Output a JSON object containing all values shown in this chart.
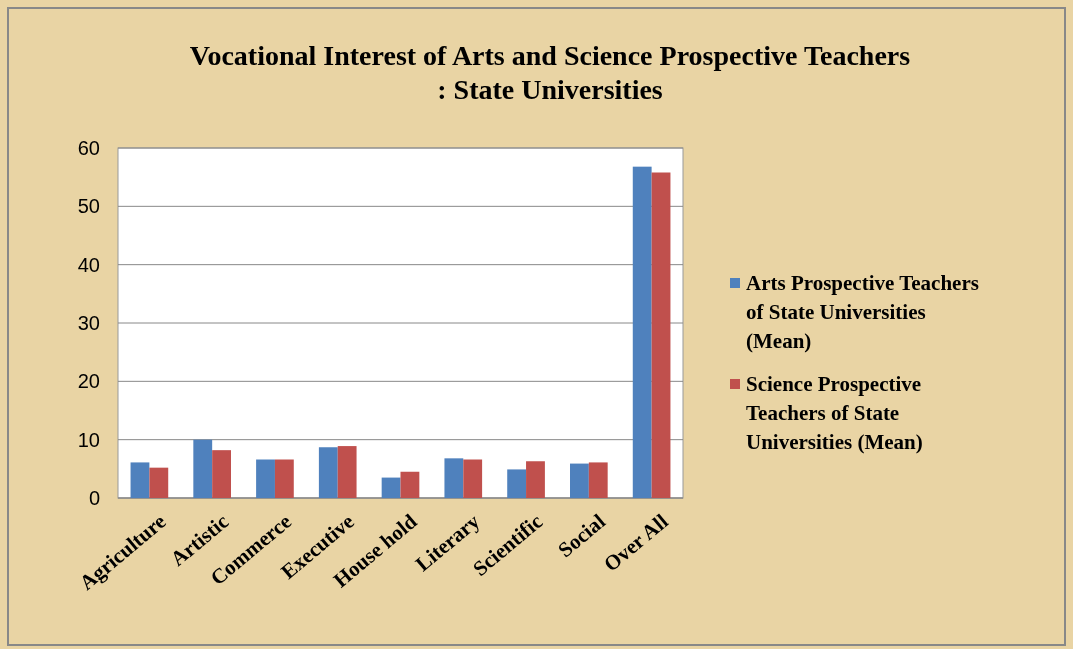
{
  "chart_data": {
    "type": "bar",
    "title": "Vocational Interest of Arts and Science Prospective Teachers : State  Universities",
    "categories": [
      "Agriculture",
      "Artistic",
      "Commerce",
      "Executive",
      "House hold",
      "Literary",
      "Scientific",
      "Social",
      "Over All"
    ],
    "series": [
      {
        "name": "Arts Prospective Teachers of State Universities (Mean)",
        "color": "#4f81bd",
        "values": [
          6.1,
          10.0,
          6.6,
          8.7,
          3.5,
          6.8,
          4.9,
          5.9,
          56.8
        ]
      },
      {
        "name": "Science  Prospective Teachers of State Universities (Mean)",
        "color": "#c0504d",
        "values": [
          5.2,
          8.2,
          6.6,
          8.9,
          4.5,
          6.6,
          6.3,
          6.1,
          55.8
        ]
      }
    ],
    "ylim": [
      0,
      60
    ],
    "yticks": [
      0,
      10,
      20,
      30,
      40,
      50,
      60
    ],
    "grid": "y",
    "legend": "right"
  }
}
